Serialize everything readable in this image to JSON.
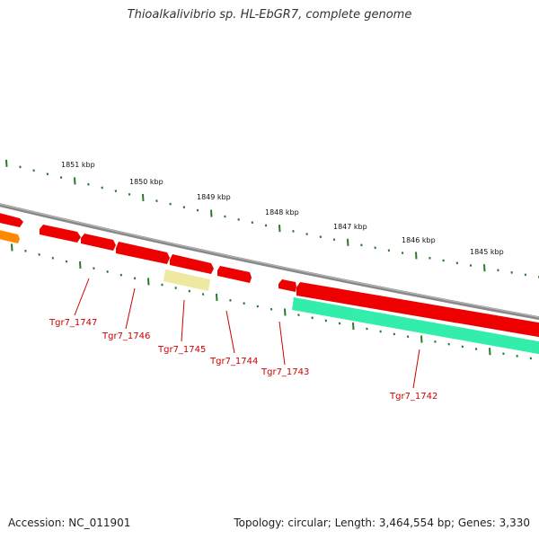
{
  "title": "Thioalkalivibrio sp. HL-EbGR7, complete genome",
  "footer": {
    "accession": "Accession: NC_011901",
    "summary": "Topology: circular; Length: 3,464,554 bp; Genes: 3,330"
  },
  "colors": {
    "backbone": "#8a8a8a",
    "gene_red": "#ee0000",
    "gene_green": "#33eeaa",
    "gene_yellow": "#eee8a0",
    "gene_orange": "#ff8800",
    "tick": "#2a7a2a",
    "label_red": "#cc0000"
  },
  "kbp_ticks": [
    "1851 kbp",
    "1850 kbp",
    "1849 kbp",
    "1848 kbp",
    "1847 kbp",
    "1846 kbp",
    "1845 kbp"
  ],
  "gene_labels": [
    "Tgr7_1747",
    "Tgr7_1746",
    "Tgr7_1745",
    "Tgr7_1744",
    "Tgr7_1743",
    "Tgr7_1742"
  ]
}
